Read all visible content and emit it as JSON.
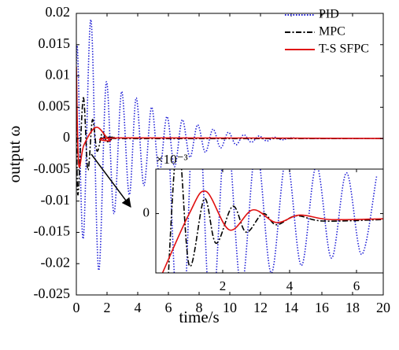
{
  "chart_data": [
    {
      "type": "line",
      "xlabel": "time/s",
      "ylabel": "output ω",
      "xlim": [
        0,
        20
      ],
      "xticks": [
        0,
        2,
        4,
        6,
        8,
        10,
        12,
        14,
        16,
        18,
        20
      ],
      "ylim": [
        -0.025,
        0.02
      ],
      "yticks": [
        -0.025,
        -0.02,
        -0.015,
        -0.01,
        -0.005,
        0,
        0.005,
        0.01,
        0.015,
        0.02
      ],
      "legend": "upper right",
      "series": [
        {
          "name": "PID",
          "color": "#1f1fd6",
          "style": "dotted",
          "x": [
            0,
            0.1,
            0.45,
            0.95,
            1.45,
            1.95,
            2.45,
            2.95,
            3.45,
            3.9,
            4.4,
            4.9,
            5.4,
            5.9,
            6.4,
            6.9,
            7.4,
            7.9,
            8.4,
            8.9,
            9.4,
            9.9,
            10.4,
            10.9,
            11.4,
            11.9,
            12.4,
            12.9,
            13.4,
            14,
            15,
            20
          ],
          "values": [
            0.012,
            0.013,
            -0.016,
            0.019,
            -0.021,
            0.009,
            -0.012,
            0.0075,
            -0.009,
            0.0065,
            -0.0075,
            0.005,
            -0.0055,
            0.0035,
            -0.0045,
            0.003,
            -0.003,
            0.0022,
            -0.0022,
            0.0015,
            -0.0015,
            0.001,
            -0.001,
            0.0006,
            -0.0006,
            0.0004,
            -0.0004,
            0.0002,
            -0.0002,
            0.0001,
            0,
            0
          ]
        },
        {
          "name": "MPC",
          "color": "#000000",
          "style": "dashdot",
          "x": [
            0,
            0.1,
            0.45,
            0.75,
            1.05,
            1.35,
            1.7,
            2.0,
            2.5,
            3,
            20
          ],
          "values": [
            0.009,
            -0.009,
            0.0065,
            -0.005,
            0.003,
            -0.002,
            0.001,
            -0.0005,
            0.0002,
            0,
            0
          ]
        },
        {
          "name": "T-S SFPC",
          "color": "#e01010",
          "style": "solid",
          "x": [
            0,
            0.15,
            0.5,
            1.3,
            2.2,
            3,
            20
          ],
          "values": [
            0.0115,
            -0.004,
            -0.001,
            0.0018,
            -0.0003,
            0.0001,
            0
          ]
        }
      ]
    },
    {
      "type": "line",
      "multiplier": "×10⁻³",
      "xlim": [
        0,
        6.8
      ],
      "xticks": [
        2,
        4,
        6
      ],
      "ylim": [
        -0.8,
        0.6
      ],
      "yticks": [
        0
      ],
      "series": [
        {
          "name": "PID",
          "color": "#1f1fd6",
          "style": "dotted",
          "x": [
            0.3,
            0.75,
            1.2,
            1.65,
            2.1,
            2.55,
            3.0,
            3.45,
            3.9,
            4.35,
            4.8,
            5.25,
            5.7,
            6.15,
            6.6
          ],
          "values": [
            2,
            -2,
            2,
            -1.5,
            1.2,
            -1,
            0.9,
            -0.8,
            0.75,
            -0.7,
            0.65,
            -0.6,
            0.55,
            -0.55,
            0.5
          ]
        },
        {
          "name": "MPC",
          "color": "#000000",
          "style": "dashdot",
          "x": [
            0.3,
            0.65,
            1.0,
            1.45,
            1.8,
            2.3,
            2.7,
            3.2,
            3.6,
            4.2,
            5,
            6.8
          ],
          "values": [
            -1.5,
            1,
            -0.7,
            0.2,
            -0.4,
            0.1,
            -0.25,
            0,
            -0.15,
            -0.03,
            -0.1,
            -0.08
          ]
        },
        {
          "name": "T-S SFPC",
          "color": "#e01010",
          "style": "solid",
          "x": [
            0.2,
            1.0,
            1.5,
            2.2,
            2.9,
            3.6,
            4.3,
            5.2,
            6.8
          ],
          "values": [
            -0.8,
            0,
            0.3,
            -0.22,
            0.05,
            -0.12,
            -0.02,
            -0.08,
            -0.07
          ]
        }
      ]
    }
  ]
}
